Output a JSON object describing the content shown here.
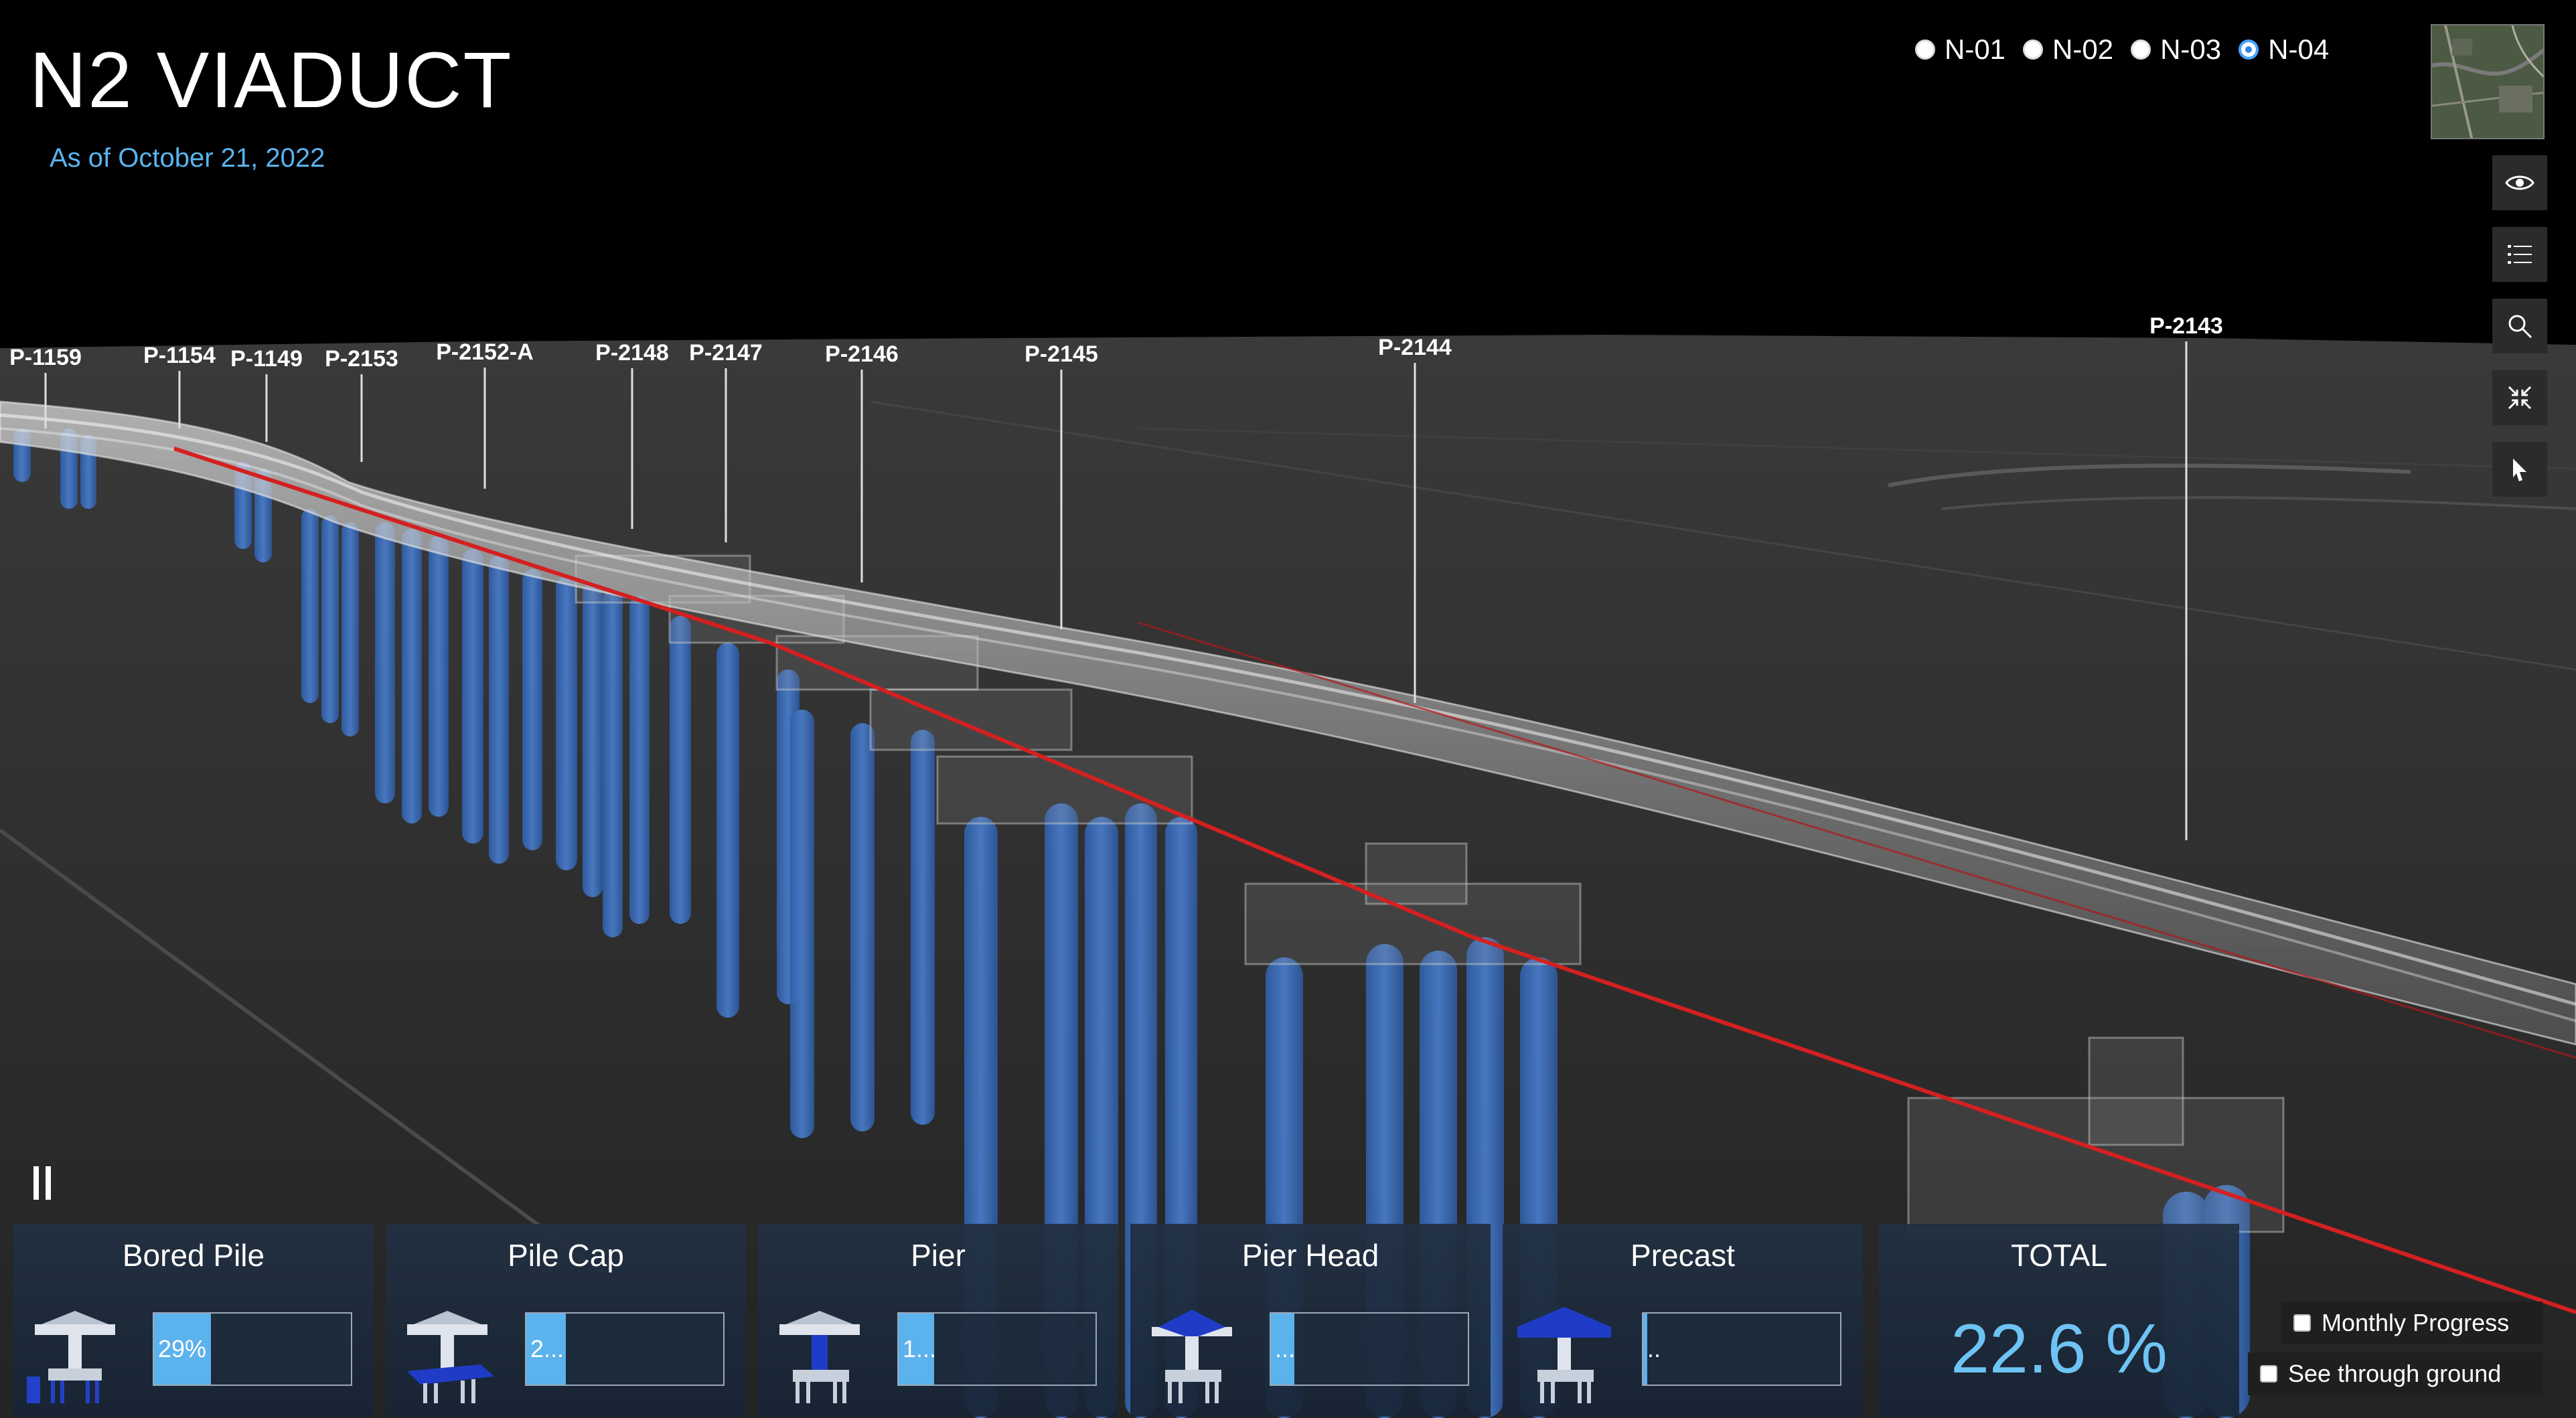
{
  "header": {
    "title": "N2 VIADUCT",
    "subtitle": "As of October 21, 2022"
  },
  "phases": [
    {
      "label": "N-01",
      "selected": false
    },
    {
      "label": "N-02",
      "selected": false
    },
    {
      "label": "N-03",
      "selected": false
    },
    {
      "label": "N-04",
      "selected": true
    }
  ],
  "toolbar": {
    "icons": [
      "eye-icon",
      "list-icon",
      "search-icon",
      "collapse-icon",
      "pointer-icon"
    ]
  },
  "piers": [
    {
      "label": "P-1159"
    },
    {
      "label": "P-1154"
    },
    {
      "label": "P-1149"
    },
    {
      "label": "P-2153"
    },
    {
      "label": "P-2152-A"
    },
    {
      "label": "P-2148"
    },
    {
      "label": "P-2147"
    },
    {
      "label": "P-2146"
    },
    {
      "label": "P-2145"
    },
    {
      "label": "P-2144"
    },
    {
      "label": "P-2143"
    }
  ],
  "progress": {
    "bored_pile": {
      "title": "Bored Pile",
      "text": "29%",
      "fraction": 0.29
    },
    "pile_cap": {
      "title": "Pile Cap",
      "text": "2...",
      "fraction": 0.2
    },
    "pier": {
      "title": "Pier",
      "text": "1...",
      "fraction": 0.18
    },
    "pier_head": {
      "title": "Pier Head",
      "text": "...",
      "fraction": 0.12
    },
    "precast": {
      "title": "Precast",
      "text": "..",
      "fraction": 0.02
    },
    "total": {
      "title": "TOTAL",
      "value": "22.6 %"
    }
  },
  "options": {
    "monthly_progress": "Monthly Progress",
    "see_through_ground": "See through ground"
  },
  "colors": {
    "accent": "#5ab4f0",
    "pile_blue": "#3f6fb8",
    "alignment_red": "#d42020"
  }
}
